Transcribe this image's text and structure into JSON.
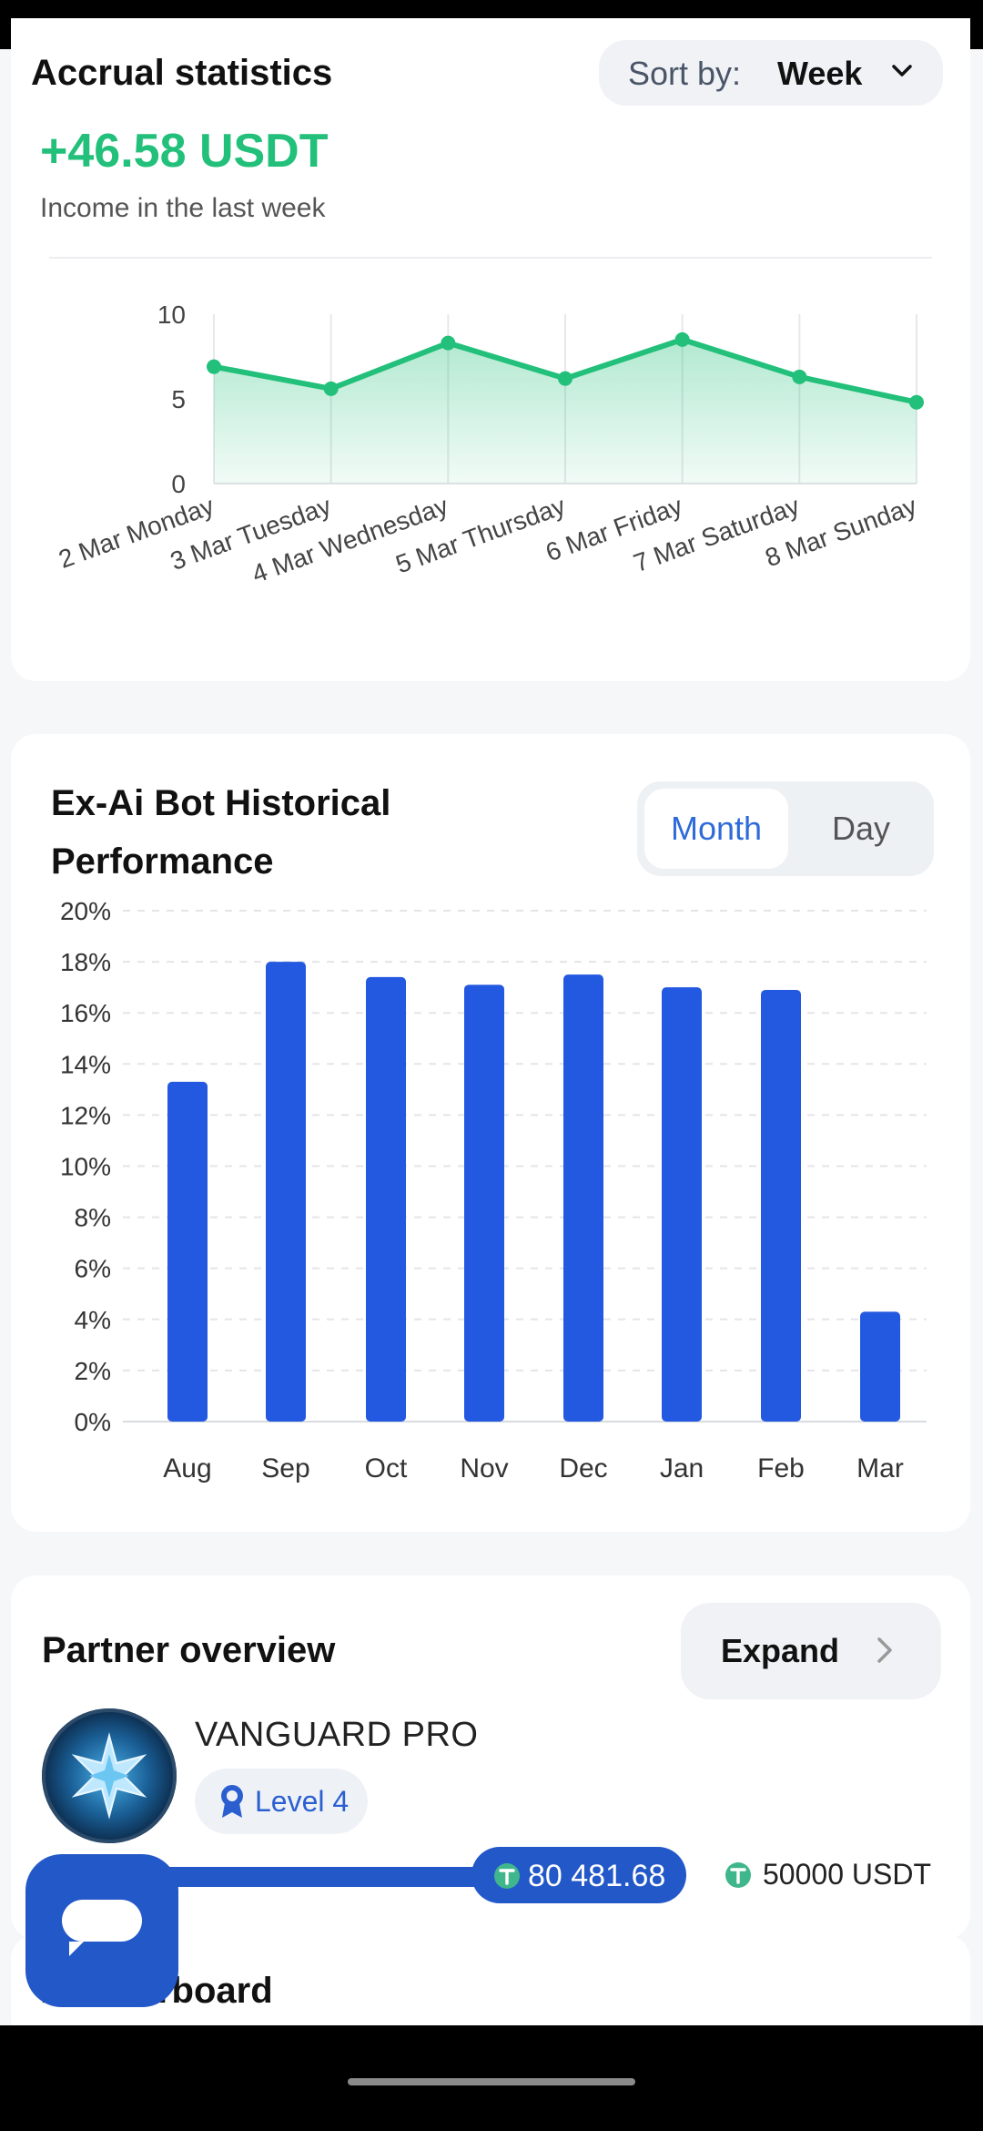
{
  "accrual": {
    "title": "Accrual statistics",
    "sort_label": "Sort by:",
    "sort_value": "Week",
    "amount": "+46.58 USDT",
    "caption": "Income in the last week"
  },
  "performance": {
    "title": "Ex-Ai Bot Historical Performance",
    "tab_month": "Month",
    "tab_day": "Day"
  },
  "partner": {
    "title": "Partner overview",
    "expand_label": "Expand",
    "tier_name": "VANGUARD PRO",
    "level": "Level 4",
    "progress_value": "80 481.68",
    "target_value": "50000 USDT"
  },
  "leaderboard": {
    "title": "r leaderboard"
  },
  "colors": {
    "accent_green": "#22c07a",
    "accent_blue": "#2358c8",
    "bar_blue": "#2358e0"
  },
  "chart_data": [
    {
      "type": "area",
      "categories": [
        "2 Mar Monday",
        "3 Mar Tuesday",
        "4 Mar Wednesday",
        "5 Mar Thursday",
        "6 Mar Friday",
        "7 Mar Saturday",
        "8 Mar Sunday"
      ],
      "values": [
        6.9,
        5.6,
        8.3,
        6.2,
        8.5,
        6.3,
        4.8
      ],
      "ylim": [
        0,
        10
      ],
      "yticks": [
        "0",
        "5",
        "10"
      ],
      "grid": true
    },
    {
      "type": "bar",
      "categories": [
        "Aug",
        "Sep",
        "Oct",
        "Nov",
        "Dec",
        "Jan",
        "Feb",
        "Mar"
      ],
      "values": [
        13.3,
        18.0,
        17.4,
        17.1,
        17.5,
        17.0,
        16.9,
        4.3
      ],
      "ylim": [
        0,
        20
      ],
      "yticks": [
        "0%",
        "2%",
        "4%",
        "6%",
        "8%",
        "10%",
        "12%",
        "14%",
        "16%",
        "18%",
        "20%"
      ],
      "grid": true
    }
  ]
}
